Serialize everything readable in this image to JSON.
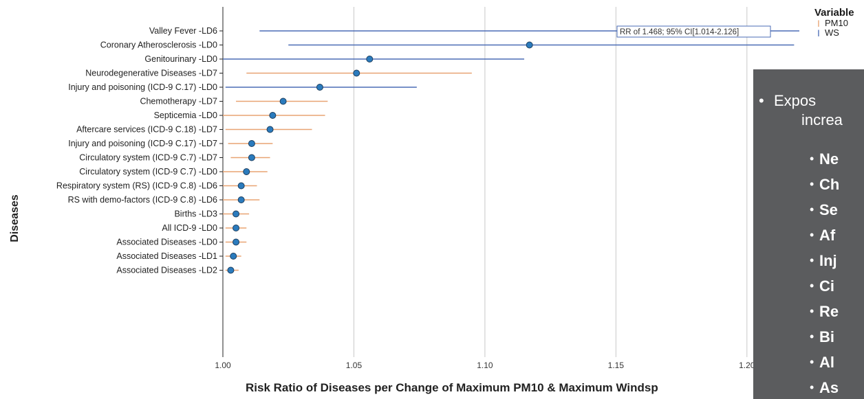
{
  "chart_data": {
    "type": "forest",
    "xlabel": "Risk Ratio of Diseases per Change of Maximum PM10 & Maximum Windsp",
    "ylabel": "Diseases",
    "xlim": [
      1.0,
      1.22
    ],
    "xticks": [
      1.0,
      1.05,
      1.1,
      1.15,
      1.2
    ],
    "xtick_labels": [
      "1.00",
      "1.05",
      "1.10",
      "1.15",
      "1.20"
    ],
    "grid": "vertical",
    "legend_position": "right",
    "legend": {
      "title": "Variable",
      "entries": [
        {
          "name": "PM10",
          "color": "#e8a372",
          "glyph": "I"
        },
        {
          "name": "WS",
          "color": "#4a6bb5",
          "glyph": "I"
        }
      ]
    },
    "point_color": "#2b7bbd",
    "annotation": "RR of 1.468; 95% CI[1.014-2.126]",
    "rows": [
      {
        "label": "Valley Fever -LD6",
        "variable": "WS",
        "rr": null,
        "lo": 1.014,
        "hi": 1.22
      },
      {
        "label": "Coronary Atherosclerosis -LD0",
        "variable": "WS",
        "rr": 1.117,
        "lo": 1.025,
        "hi": 1.218
      },
      {
        "label": "Genitourinary -LD0",
        "variable": "WS",
        "rr": 1.056,
        "lo": 1.0,
        "hi": 1.115
      },
      {
        "label": "Neurodegenerative Diseases -LD7",
        "variable": "PM10",
        "rr": 1.051,
        "lo": 1.009,
        "hi": 1.095
      },
      {
        "label": "Injury and poisoning (ICD-9 C.17) -LD0",
        "variable": "WS",
        "rr": 1.037,
        "lo": 1.001,
        "hi": 1.074
      },
      {
        "label": "Chemotherapy -LD7",
        "variable": "PM10",
        "rr": 1.023,
        "lo": 1.005,
        "hi": 1.04
      },
      {
        "label": "Septicemia -LD0",
        "variable": "PM10",
        "rr": 1.019,
        "lo": 1.0,
        "hi": 1.039
      },
      {
        "label": "Aftercare services (ICD-9 C.18) -LD7",
        "variable": "PM10",
        "rr": 1.018,
        "lo": 1.001,
        "hi": 1.034
      },
      {
        "label": "Injury and poisoning (ICD-9 C.17) -LD7",
        "variable": "PM10",
        "rr": 1.011,
        "lo": 1.002,
        "hi": 1.019
      },
      {
        "label": "Circulatory system (ICD-9 C.7) -LD7",
        "variable": "PM10",
        "rr": 1.011,
        "lo": 1.003,
        "hi": 1.018
      },
      {
        "label": "Circulatory system (ICD-9 C.7) -LD0",
        "variable": "PM10",
        "rr": 1.009,
        "lo": 1.0,
        "hi": 1.017
      },
      {
        "label": "Respiratory system (RS) (ICD-9 C.8) -LD6",
        "variable": "PM10",
        "rr": 1.007,
        "lo": 1.0,
        "hi": 1.013
      },
      {
        "label": "RS with demo-factors (ICD-9 C.8) -LD6",
        "variable": "PM10",
        "rr": 1.007,
        "lo": 1.0,
        "hi": 1.014
      },
      {
        "label": "Births -LD3",
        "variable": "PM10",
        "rr": 1.005,
        "lo": 1.0,
        "hi": 1.01
      },
      {
        "label": "All ICD-9 -LD0",
        "variable": "PM10",
        "rr": 1.005,
        "lo": 1.001,
        "hi": 1.009
      },
      {
        "label": "Associated Diseases -LD0",
        "variable": "PM10",
        "rr": 1.005,
        "lo": 1.001,
        "hi": 1.009
      },
      {
        "label": "Associated Diseases -LD1",
        "variable": "PM10",
        "rr": 1.004,
        "lo": 1.001,
        "hi": 1.007
      },
      {
        "label": "Associated Diseases -LD2",
        "variable": "PM10",
        "rr": 1.003,
        "lo": 1.001,
        "hi": 1.006
      }
    ]
  },
  "overlay": {
    "intro_line1": "Expos",
    "intro_line2": "increa",
    "items": [
      "Ne",
      "Ch",
      "Se",
      "Af",
      "Inj",
      "Ci",
      "Re",
      "Bi",
      "Al",
      "As"
    ],
    "background": "#5b5c5e"
  }
}
